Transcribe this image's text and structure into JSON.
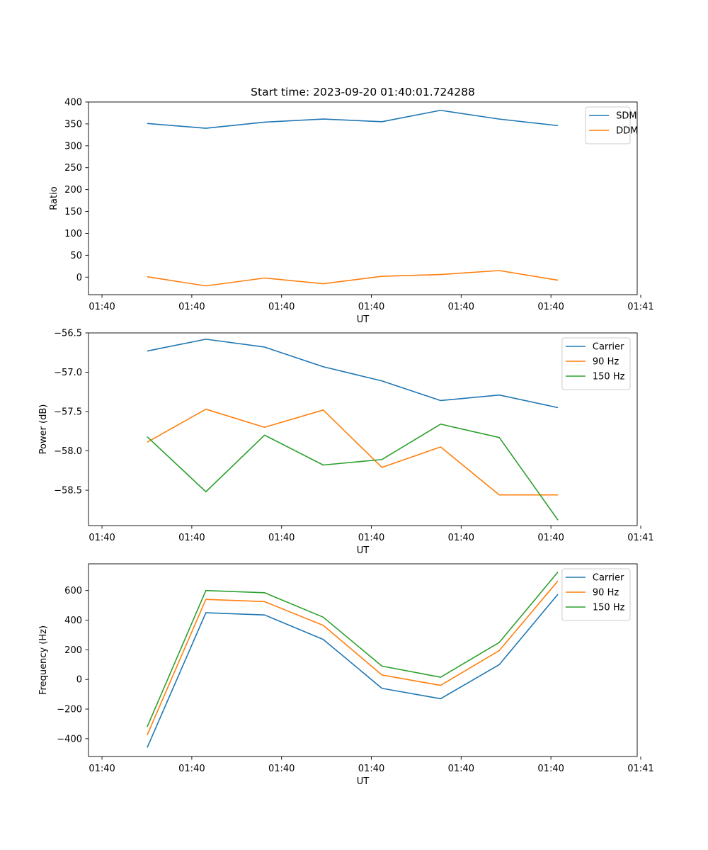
{
  "colors": {
    "series1": "#1f77b4",
    "series2": "#ff7f0e",
    "series3": "#2ca02c",
    "axes": "#000000",
    "legend_border": "#cccccc"
  },
  "chart_data": [
    {
      "type": "line",
      "title": "Start time: 2023-09-20 01:40:01.724288",
      "xlabel": "UT",
      "ylabel": "Ratio",
      "xlim": [
        -1.0,
        8.35
      ],
      "ylim": [
        -40,
        400
      ],
      "x": [
        0,
        1,
        2,
        3,
        4,
        5,
        6,
        7
      ],
      "xticks": [
        -0.77,
        0.76,
        2.29,
        3.82,
        5.35,
        6.88,
        8.41
      ],
      "xtick_labels": [
        "01:40",
        "01:40",
        "01:40",
        "01:40",
        "01:40",
        "01:40",
        "01:41"
      ],
      "yticks": [
        0,
        50,
        100,
        150,
        200,
        250,
        300,
        350,
        400
      ],
      "ytick_labels": [
        "0",
        "50",
        "100",
        "150",
        "200",
        "250",
        "300",
        "350",
        "400"
      ],
      "legend_position": "top-right",
      "series": [
        {
          "name": "SDM",
          "values": [
            351,
            340,
            354,
            361,
            355,
            381,
            361,
            346
          ]
        },
        {
          "name": "DDM",
          "values": [
            1,
            -20,
            -2,
            -15,
            2,
            6,
            15,
            -7
          ]
        }
      ]
    },
    {
      "type": "line",
      "title": "",
      "xlabel": "UT",
      "ylabel": "Power (dB)",
      "xlim": [
        -1.0,
        8.35
      ],
      "ylim": [
        -58.95,
        -56.5
      ],
      "x": [
        0,
        1,
        2,
        3,
        4,
        5,
        6,
        7
      ],
      "xticks": [
        -0.77,
        0.76,
        2.29,
        3.82,
        5.35,
        6.88,
        8.41
      ],
      "xtick_labels": [
        "01:40",
        "01:40",
        "01:40",
        "01:40",
        "01:40",
        "01:40",
        "01:41"
      ],
      "yticks": [
        -58.5,
        -58.0,
        -57.5,
        -57.0,
        -56.5
      ],
      "ytick_labels": [
        "−58.5",
        "−58.0",
        "−57.5",
        "−57.0",
        "−56.5"
      ],
      "legend_position": "top-right",
      "series": [
        {
          "name": "Carrier",
          "values": [
            -56.73,
            -56.58,
            -56.68,
            -56.93,
            -57.11,
            -57.36,
            -57.29,
            -57.45
          ]
        },
        {
          "name": "90 Hz",
          "values": [
            -57.89,
            -57.47,
            -57.7,
            -57.48,
            -58.21,
            -57.95,
            -58.56,
            -58.56
          ]
        },
        {
          "name": "150 Hz",
          "values": [
            -57.82,
            -58.52,
            -57.8,
            -58.18,
            -58.11,
            -57.66,
            -57.83,
            -58.88
          ]
        }
      ]
    },
    {
      "type": "line",
      "title": "",
      "xlabel": "UT",
      "ylabel": "Frequency (Hz)",
      "xlim": [
        -1.0,
        8.35
      ],
      "ylim": [
        -520,
        780
      ],
      "x": [
        0,
        1,
        2,
        3,
        4,
        5,
        6,
        7
      ],
      "xticks": [
        -0.77,
        0.76,
        2.29,
        3.82,
        5.35,
        6.88,
        8.41
      ],
      "xtick_labels": [
        "01:40",
        "01:40",
        "01:40",
        "01:40",
        "01:40",
        "01:40",
        "01:41"
      ],
      "yticks": [
        -400,
        -200,
        0,
        200,
        400,
        600
      ],
      "ytick_labels": [
        "−400",
        "−200",
        "0",
        "200",
        "400",
        "600"
      ],
      "legend_position": "top-right",
      "series": [
        {
          "name": "Carrier",
          "values": [
            -460,
            450,
            435,
            270,
            -60,
            -130,
            100,
            575
          ]
        },
        {
          "name": "90 Hz",
          "values": [
            -375,
            540,
            525,
            365,
            30,
            -40,
            195,
            665
          ]
        },
        {
          "name": "150 Hz",
          "values": [
            -320,
            600,
            585,
            420,
            90,
            15,
            250,
            725
          ]
        }
      ]
    }
  ]
}
